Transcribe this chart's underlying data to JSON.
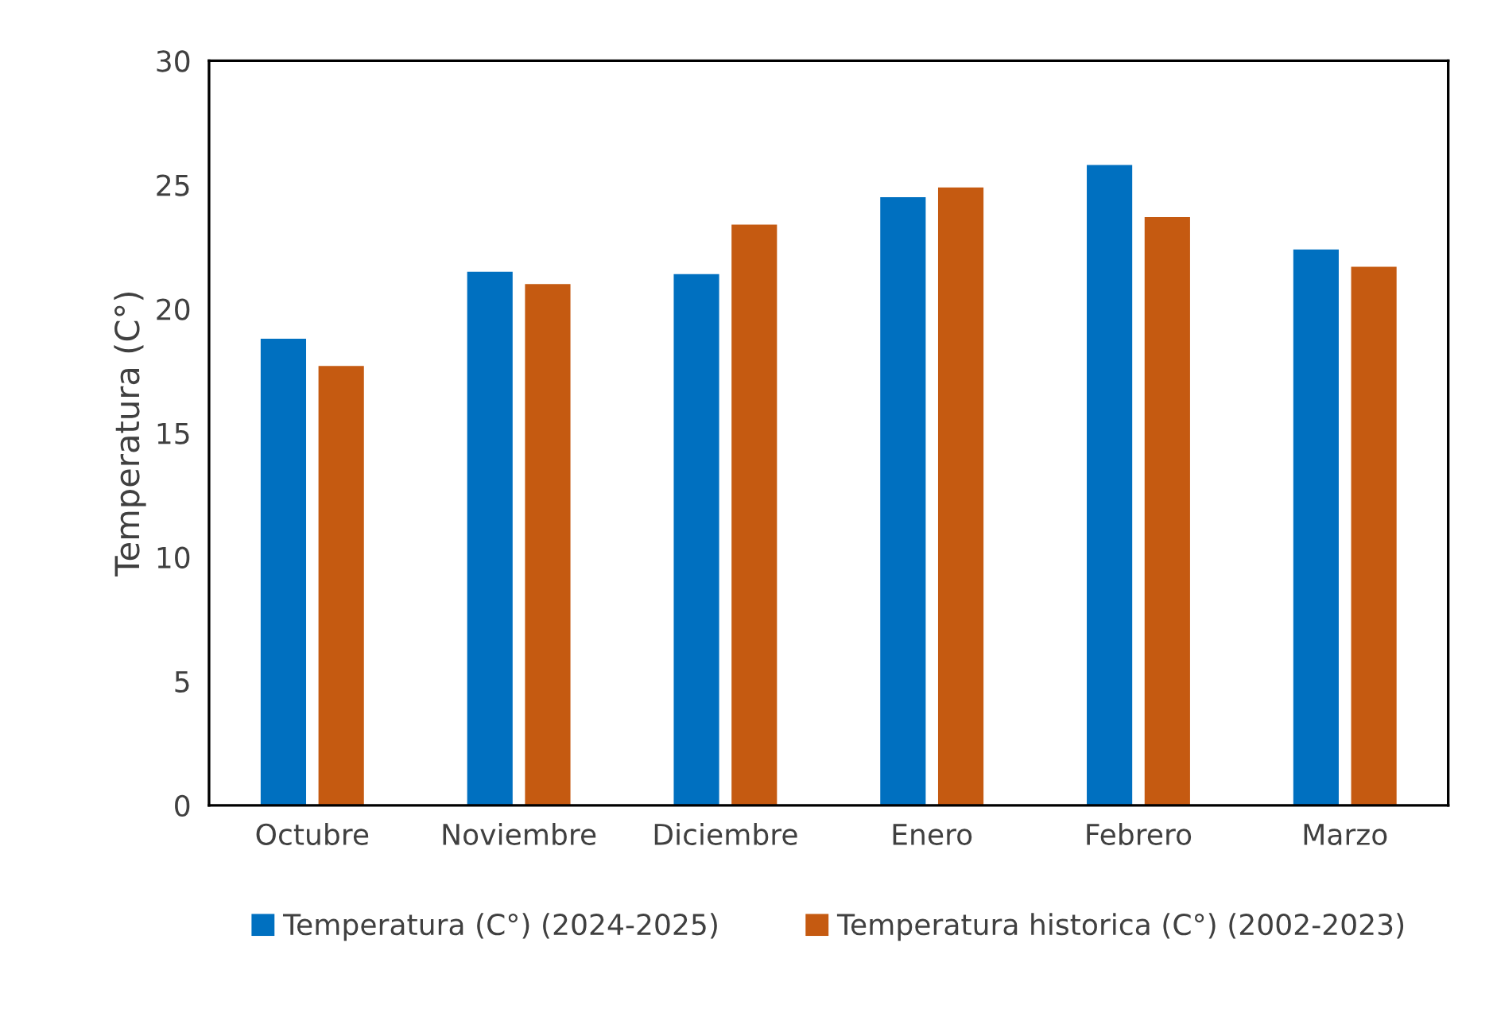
{
  "chart_data": {
    "type": "bar",
    "ylabel": "Temperatura (C°)",
    "categories": [
      "Octubre",
      "Noviembre",
      "Diciembre",
      "Enero",
      "Febrero",
      "Marzo"
    ],
    "series": [
      {
        "name": "Temperatura (C°) (2024-2025)",
        "color": "#0070c0",
        "values": [
          18.8,
          21.5,
          21.4,
          24.5,
          25.8,
          22.4
        ]
      },
      {
        "name": "Temperatura historica (C°) (2002-2023)",
        "color": "#c55a11",
        "values": [
          17.7,
          21.0,
          23.4,
          24.9,
          23.7,
          21.7
        ]
      }
    ],
    "ylim": [
      0,
      30
    ],
    "yticks": [
      0,
      5,
      10,
      15,
      20,
      25,
      30
    ],
    "grid": false,
    "legend": "bottom"
  }
}
